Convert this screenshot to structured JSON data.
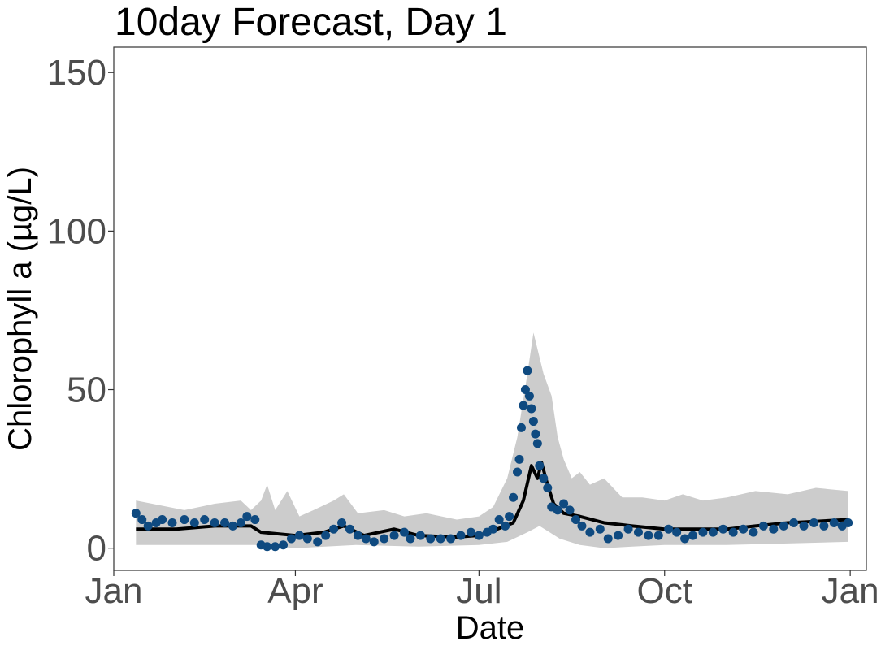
{
  "chart_data": {
    "type": "line",
    "title": "10day Forecast, Day 1",
    "xlabel": "Date",
    "ylabel": "Chlorophyll a (µg/L)",
    "ylim": [
      -7,
      158
    ],
    "xlim": [
      "2019-01-01",
      "2020-01-09"
    ],
    "x_ticks": [
      {
        "label": "Jan",
        "date": "2019-01-01"
      },
      {
        "label": "Apr",
        "date": "2019-04-01"
      },
      {
        "label": "Jul",
        "date": "2019-07-01"
      },
      {
        "label": "Oct",
        "date": "2019-10-01"
      },
      {
        "label": "Jan",
        "date": "2020-01-01"
      }
    ],
    "y_ticks": [
      0,
      50,
      100,
      150
    ],
    "grid": false,
    "colors": {
      "ribbon": "#cccccc",
      "forecast_line": "#000000",
      "observations": "#0f4a80",
      "axis_text": "#4d4d4d",
      "panel_border": "#333333"
    },
    "series": [
      {
        "role": "forecast_interval_upper",
        "points": [
          [
            "2019-01-12",
            15
          ],
          [
            "2019-01-20",
            14
          ],
          [
            "2019-02-05",
            12
          ],
          [
            "2019-02-20",
            14
          ],
          [
            "2019-03-05",
            15
          ],
          [
            "2019-03-10",
            12
          ],
          [
            "2019-03-15",
            15
          ],
          [
            "2019-03-18",
            20
          ],
          [
            "2019-03-22",
            12
          ],
          [
            "2019-03-28",
            18
          ],
          [
            "2019-04-03",
            10
          ],
          [
            "2019-04-10",
            12
          ],
          [
            "2019-04-20",
            15
          ],
          [
            "2019-04-25",
            17
          ],
          [
            "2019-05-02",
            11
          ],
          [
            "2019-05-15",
            12
          ],
          [
            "2019-05-25",
            10
          ],
          [
            "2019-06-05",
            11
          ],
          [
            "2019-06-20",
            9
          ],
          [
            "2019-07-01",
            10
          ],
          [
            "2019-07-08",
            13
          ],
          [
            "2019-07-15",
            22
          ],
          [
            "2019-07-20",
            35
          ],
          [
            "2019-07-25",
            55
          ],
          [
            "2019-07-28",
            68
          ],
          [
            "2019-08-02",
            55
          ],
          [
            "2019-08-06",
            48
          ],
          [
            "2019-08-09",
            35
          ],
          [
            "2019-08-12",
            28
          ],
          [
            "2019-08-16",
            22
          ],
          [
            "2019-08-20",
            24
          ],
          [
            "2019-08-25",
            20
          ],
          [
            "2019-09-01",
            22
          ],
          [
            "2019-09-10",
            16
          ],
          [
            "2019-09-20",
            16
          ],
          [
            "2019-10-01",
            15
          ],
          [
            "2019-10-10",
            17
          ],
          [
            "2019-10-20",
            15
          ],
          [
            "2019-11-01",
            16
          ],
          [
            "2019-11-15",
            18
          ],
          [
            "2019-12-01",
            17
          ],
          [
            "2019-12-15",
            19
          ],
          [
            "2019-12-31",
            18
          ]
        ]
      },
      {
        "role": "forecast_interval_lower",
        "points": [
          [
            "2019-01-12",
            1
          ],
          [
            "2019-02-15",
            1
          ],
          [
            "2019-03-15",
            1
          ],
          [
            "2019-04-01",
            0
          ],
          [
            "2019-05-01",
            1
          ],
          [
            "2019-06-01",
            0.5
          ],
          [
            "2019-07-01",
            1
          ],
          [
            "2019-07-15",
            2
          ],
          [
            "2019-07-25",
            5
          ],
          [
            "2019-07-31",
            7
          ],
          [
            "2019-08-05",
            5
          ],
          [
            "2019-08-10",
            3
          ],
          [
            "2019-08-20",
            1
          ],
          [
            "2019-09-01",
            0
          ],
          [
            "2019-09-15",
            0.5
          ],
          [
            "2019-10-01",
            1
          ],
          [
            "2019-11-01",
            1
          ],
          [
            "2019-12-01",
            1.5
          ],
          [
            "2019-12-31",
            2
          ]
        ]
      },
      {
        "role": "forecast_mean",
        "points": [
          [
            "2019-01-12",
            6
          ],
          [
            "2019-02-01",
            6
          ],
          [
            "2019-02-20",
            7
          ],
          [
            "2019-03-10",
            7
          ],
          [
            "2019-03-15",
            5
          ],
          [
            "2019-04-01",
            4
          ],
          [
            "2019-04-15",
            5
          ],
          [
            "2019-04-25",
            7
          ],
          [
            "2019-05-05",
            4
          ],
          [
            "2019-05-20",
            6
          ],
          [
            "2019-06-01",
            4
          ],
          [
            "2019-06-20",
            3.5
          ],
          [
            "2019-07-01",
            4
          ],
          [
            "2019-07-10",
            6
          ],
          [
            "2019-07-18",
            8
          ],
          [
            "2019-07-23",
            15
          ],
          [
            "2019-07-27",
            26
          ],
          [
            "2019-07-30",
            22
          ],
          [
            "2019-08-01",
            27
          ],
          [
            "2019-08-04",
            20
          ],
          [
            "2019-08-07",
            14
          ],
          [
            "2019-08-12",
            11
          ],
          [
            "2019-08-20",
            10
          ],
          [
            "2019-09-01",
            8
          ],
          [
            "2019-09-15",
            7
          ],
          [
            "2019-10-01",
            6
          ],
          [
            "2019-10-15",
            6
          ],
          [
            "2019-11-01",
            6
          ],
          [
            "2019-11-15",
            7
          ],
          [
            "2019-12-01",
            8
          ],
          [
            "2019-12-31",
            9
          ]
        ]
      },
      {
        "role": "observations",
        "points": [
          [
            "2019-01-12",
            11
          ],
          [
            "2019-01-15",
            9
          ],
          [
            "2019-01-18",
            7
          ],
          [
            "2019-01-22",
            8
          ],
          [
            "2019-01-25",
            9
          ],
          [
            "2019-01-30",
            8
          ],
          [
            "2019-02-05",
            9
          ],
          [
            "2019-02-10",
            8
          ],
          [
            "2019-02-15",
            9
          ],
          [
            "2019-02-20",
            8
          ],
          [
            "2019-02-25",
            8
          ],
          [
            "2019-03-01",
            7
          ],
          [
            "2019-03-05",
            8
          ],
          [
            "2019-03-08",
            10
          ],
          [
            "2019-03-12",
            9
          ],
          [
            "2019-03-15",
            1
          ],
          [
            "2019-03-18",
            0.5
          ],
          [
            "2019-03-22",
            0.5
          ],
          [
            "2019-03-26",
            1
          ],
          [
            "2019-03-30",
            3
          ],
          [
            "2019-04-03",
            4
          ],
          [
            "2019-04-07",
            3
          ],
          [
            "2019-04-12",
            2
          ],
          [
            "2019-04-16",
            4
          ],
          [
            "2019-04-20",
            6
          ],
          [
            "2019-04-24",
            8
          ],
          [
            "2019-04-28",
            6
          ],
          [
            "2019-05-02",
            4
          ],
          [
            "2019-05-06",
            3
          ],
          [
            "2019-05-10",
            2
          ],
          [
            "2019-05-15",
            3
          ],
          [
            "2019-05-20",
            4
          ],
          [
            "2019-05-25",
            5
          ],
          [
            "2019-05-28",
            3
          ],
          [
            "2019-06-02",
            4
          ],
          [
            "2019-06-07",
            3
          ],
          [
            "2019-06-12",
            3
          ],
          [
            "2019-06-17",
            3
          ],
          [
            "2019-06-22",
            4
          ],
          [
            "2019-06-27",
            5
          ],
          [
            "2019-07-01",
            4
          ],
          [
            "2019-07-05",
            5
          ],
          [
            "2019-07-08",
            6
          ],
          [
            "2019-07-11",
            9
          ],
          [
            "2019-07-14",
            7
          ],
          [
            "2019-07-16",
            10
          ],
          [
            "2019-07-18",
            16
          ],
          [
            "2019-07-20",
            24
          ],
          [
            "2019-07-21",
            28
          ],
          [
            "2019-07-22",
            38
          ],
          [
            "2019-07-23",
            45
          ],
          [
            "2019-07-24",
            50
          ],
          [
            "2019-07-25",
            56
          ],
          [
            "2019-07-26",
            48
          ],
          [
            "2019-07-27",
            44
          ],
          [
            "2019-07-28",
            40
          ],
          [
            "2019-07-29",
            36
          ],
          [
            "2019-07-30",
            33
          ],
          [
            "2019-07-31",
            26
          ],
          [
            "2019-08-02",
            22
          ],
          [
            "2019-08-04",
            19
          ],
          [
            "2019-08-06",
            13
          ],
          [
            "2019-08-09",
            12
          ],
          [
            "2019-08-12",
            14
          ],
          [
            "2019-08-15",
            12
          ],
          [
            "2019-08-18",
            9
          ],
          [
            "2019-08-21",
            7
          ],
          [
            "2019-08-25",
            5
          ],
          [
            "2019-08-30",
            6
          ],
          [
            "2019-09-03",
            3
          ],
          [
            "2019-09-08",
            4
          ],
          [
            "2019-09-13",
            6
          ],
          [
            "2019-09-18",
            5
          ],
          [
            "2019-09-23",
            4
          ],
          [
            "2019-09-28",
            4
          ],
          [
            "2019-10-03",
            6
          ],
          [
            "2019-10-07",
            5
          ],
          [
            "2019-10-11",
            3
          ],
          [
            "2019-10-15",
            4
          ],
          [
            "2019-10-20",
            5
          ],
          [
            "2019-10-25",
            5
          ],
          [
            "2019-10-30",
            6
          ],
          [
            "2019-11-04",
            5
          ],
          [
            "2019-11-09",
            6
          ],
          [
            "2019-11-14",
            5
          ],
          [
            "2019-11-19",
            7
          ],
          [
            "2019-11-24",
            6
          ],
          [
            "2019-11-29",
            7
          ],
          [
            "2019-12-04",
            8
          ],
          [
            "2019-12-09",
            7
          ],
          [
            "2019-12-14",
            8
          ],
          [
            "2019-12-19",
            7
          ],
          [
            "2019-12-24",
            8
          ],
          [
            "2019-12-28",
            7
          ],
          [
            "2019-12-31",
            8
          ]
        ]
      }
    ]
  }
}
